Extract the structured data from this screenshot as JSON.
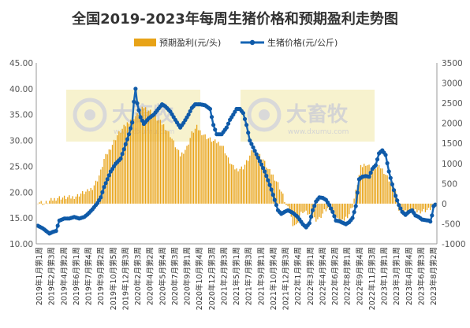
{
  "chart_data": {
    "type": "bar+line",
    "title": "全国2019-2023年每周生猪价格和预期盈利走势图",
    "legend": {
      "bar_label": "预期盈利(元/头)",
      "line_label": "生猪价格(元/公斤)",
      "position": "top-center"
    },
    "watermarks": [
      {
        "brand": "大畜牧",
        "url": "www.dxumu.com"
      },
      {
        "brand": "大畜牧",
        "url": "www.dxumu.com"
      }
    ],
    "colors": {
      "bar": "#E8A317",
      "line": "#1565B5",
      "marker": "#0F5AA8",
      "watermark_bg": "#F6F0C6",
      "axis_text": "#555555"
    },
    "y_left": {
      "range": [
        10,
        45
      ],
      "ticks": [
        "10.00",
        "15.00",
        "20.00",
        "25.00",
        "30.00",
        "35.00",
        "40.00",
        "45.00"
      ]
    },
    "y_right": {
      "range": [
        -1000,
        3500
      ],
      "ticks": [
        "-1000",
        "-500",
        "0",
        "500",
        "1000",
        "1500",
        "2000",
        "2500",
        "3000",
        "3500"
      ]
    },
    "x_labels": [
      "2019年1月第1周",
      "2019年2月第3周",
      "2019年4月第2周",
      "2019年6月第1周",
      "2019年7月第4周",
      "2019年9月第2周",
      "2019年10月第5周",
      "2019年12月第3周",
      "2020年2月第3周",
      "2020年4月第2周",
      "2020年5月第4周",
      "2020年7月第3周",
      "2020年9月第1周",
      "2020年10月第4周",
      "2020年12月第3周",
      "2021年2月第3周",
      "2021年5月第1周",
      "2021年7月第3周",
      "2021年9月第1周",
      "2021年10月第4周",
      "2021年12月第3周",
      "2022年1月第4周",
      "2022年3月第1周",
      "2022年4月第4周",
      "2022年6月第2周",
      "2022年8月第1周",
      "2022年9月第4周",
      "2022年11月第3周",
      "2023年1月第1周",
      "2023年3月第1周",
      "2023年4月第4周",
      "2023年6月第3周",
      "2023年8月第2周"
    ],
    "week_count": 241,
    "series": [
      {
        "name": "预期盈利(元/头)",
        "axis": "right",
        "render": "bar",
        "keypoints_week_value": [
          [
            0,
            60
          ],
          [
            4,
            0
          ],
          [
            8,
            80
          ],
          [
            12,
            150
          ],
          [
            14,
            150
          ],
          [
            18,
            150
          ],
          [
            20,
            150
          ],
          [
            24,
            200
          ],
          [
            26,
            250
          ],
          [
            30,
            300
          ],
          [
            33,
            400
          ],
          [
            36,
            600
          ],
          [
            38,
            800
          ],
          [
            40,
            1100
          ],
          [
            44,
            1400
          ],
          [
            48,
            1700
          ],
          [
            52,
            1900
          ],
          [
            56,
            2100
          ],
          [
            60,
            2200
          ],
          [
            64,
            2400
          ],
          [
            68,
            2300
          ],
          [
            72,
            2100
          ],
          [
            76,
            1950
          ],
          [
            80,
            1700
          ],
          [
            84,
            1350
          ],
          [
            86,
            1200
          ],
          [
            90,
            1400
          ],
          [
            93,
            1750
          ],
          [
            96,
            1900
          ],
          [
            98,
            1800
          ],
          [
            102,
            1650
          ],
          [
            106,
            1550
          ],
          [
            110,
            1500
          ],
          [
            112,
            1400
          ],
          [
            115,
            1100
          ],
          [
            118,
            900
          ],
          [
            120,
            850
          ],
          [
            124,
            900
          ],
          [
            127,
            1100
          ],
          [
            130,
            1350
          ],
          [
            133,
            1250
          ],
          [
            136,
            1100
          ],
          [
            139,
            850
          ],
          [
            142,
            700
          ],
          [
            145,
            500
          ],
          [
            148,
            200
          ],
          [
            150,
            -50
          ],
          [
            152,
            -200
          ],
          [
            154,
            -500
          ],
          [
            156,
            -550
          ],
          [
            158,
            -300
          ],
          [
            160,
            -200
          ],
          [
            163,
            -250
          ],
          [
            166,
            -350
          ],
          [
            168,
            -400
          ],
          [
            170,
            -380
          ],
          [
            173,
            -200
          ],
          [
            176,
            -100
          ],
          [
            178,
            -250
          ],
          [
            181,
            -400
          ],
          [
            183,
            -500
          ],
          [
            186,
            -350
          ],
          [
            188,
            -250
          ],
          [
            190,
            -50
          ],
          [
            192,
            300
          ],
          [
            195,
            900
          ],
          [
            198,
            1000
          ],
          [
            201,
            900
          ],
          [
            204,
            900
          ],
          [
            207,
            900
          ],
          [
            209,
            800
          ],
          [
            212,
            600
          ],
          [
            214,
            500
          ],
          [
            216,
            300
          ],
          [
            218,
            -150
          ],
          [
            220,
            -200
          ],
          [
            224,
            -200
          ],
          [
            228,
            -200
          ],
          [
            232,
            -180
          ],
          [
            236,
            -150
          ],
          [
            240,
            -50
          ]
        ]
      },
      {
        "name": "生猪价格(元/公斤)",
        "axis": "left",
        "render": "line-with-markers",
        "keypoints_week_value": [
          [
            0,
            13.5
          ],
          [
            3,
            13
          ],
          [
            5,
            12.5
          ],
          [
            7,
            12
          ],
          [
            9,
            12.3
          ],
          [
            11,
            12.5
          ],
          [
            13,
            14.5
          ],
          [
            16,
            14.9
          ],
          [
            19,
            14.9
          ],
          [
            22,
            15.2
          ],
          [
            25,
            14.9
          ],
          [
            28,
            15.2
          ],
          [
            30,
            15.7
          ],
          [
            33,
            16.7
          ],
          [
            36,
            17.9
          ],
          [
            38,
            19
          ],
          [
            40,
            21
          ],
          [
            42,
            22.5
          ],
          [
            44,
            24
          ],
          [
            47,
            25.5
          ],
          [
            50,
            26.5
          ],
          [
            52,
            28.3
          ],
          [
            55,
            31.2
          ],
          [
            57,
            33.5
          ],
          [
            58,
            37.5
          ],
          [
            59,
            40.0
          ],
          [
            60,
            37.2
          ],
          [
            62,
            34.5
          ],
          [
            64,
            33.2
          ],
          [
            67,
            34.3
          ],
          [
            70,
            35
          ],
          [
            73,
            36.2
          ],
          [
            75,
            37
          ],
          [
            77,
            36.6
          ],
          [
            80,
            35.6
          ],
          [
            83,
            34
          ],
          [
            86,
            32.5
          ],
          [
            88,
            33.4
          ],
          [
            91,
            35
          ],
          [
            93,
            36.3
          ],
          [
            95,
            37
          ],
          [
            98,
            37
          ],
          [
            101,
            36.8
          ],
          [
            104,
            36.1
          ],
          [
            106,
            33
          ],
          [
            108,
            31.2
          ],
          [
            111,
            31.2
          ],
          [
            114,
            32.5
          ],
          [
            116,
            34
          ],
          [
            118,
            35
          ],
          [
            120,
            36.1
          ],
          [
            122,
            36.1
          ],
          [
            124,
            35.3
          ],
          [
            126,
            33
          ],
          [
            128,
            30
          ],
          [
            131,
            28
          ],
          [
            134,
            26
          ],
          [
            137,
            24
          ],
          [
            139,
            22.3
          ],
          [
            141,
            20.5
          ],
          [
            143,
            18.5
          ],
          [
            145,
            16.5
          ],
          [
            147,
            15.8
          ],
          [
            149,
            16.2
          ],
          [
            151,
            16.5
          ],
          [
            154,
            16
          ],
          [
            157,
            15.2
          ],
          [
            160,
            13.8
          ],
          [
            162,
            13.2
          ],
          [
            164,
            14
          ],
          [
            166,
            16.5
          ],
          [
            168,
            18.2
          ],
          [
            170,
            19
          ],
          [
            172,
            18.9
          ],
          [
            174,
            18.5
          ],
          [
            176,
            17.5
          ],
          [
            178,
            16.2
          ],
          [
            180,
            14.5
          ],
          [
            182,
            14.4
          ],
          [
            184,
            14.1
          ],
          [
            186,
            13.8
          ],
          [
            188,
            14.2
          ],
          [
            190,
            15
          ],
          [
            192,
            17.3
          ],
          [
            194,
            22.5
          ],
          [
            196,
            23
          ],
          [
            198,
            23.1
          ],
          [
            200,
            23
          ],
          [
            202,
            24.5
          ],
          [
            204,
            25.2
          ],
          [
            206,
            27.5
          ],
          [
            208,
            28.1
          ],
          [
            210,
            27.2
          ],
          [
            212,
            24
          ],
          [
            214,
            21.5
          ],
          [
            216,
            19.3
          ],
          [
            218,
            17.5
          ],
          [
            220,
            16.2
          ],
          [
            222,
            15.6
          ],
          [
            224,
            16.2
          ],
          [
            226,
            16.5
          ],
          [
            228,
            15.5
          ],
          [
            230,
            15.2
          ],
          [
            232,
            14.7
          ],
          [
            234,
            14.6
          ],
          [
            236,
            14.5
          ],
          [
            237,
            14.3
          ],
          [
            238,
            15.5
          ],
          [
            239,
            17.3
          ],
          [
            240,
            17.6
          ]
        ]
      }
    ]
  }
}
